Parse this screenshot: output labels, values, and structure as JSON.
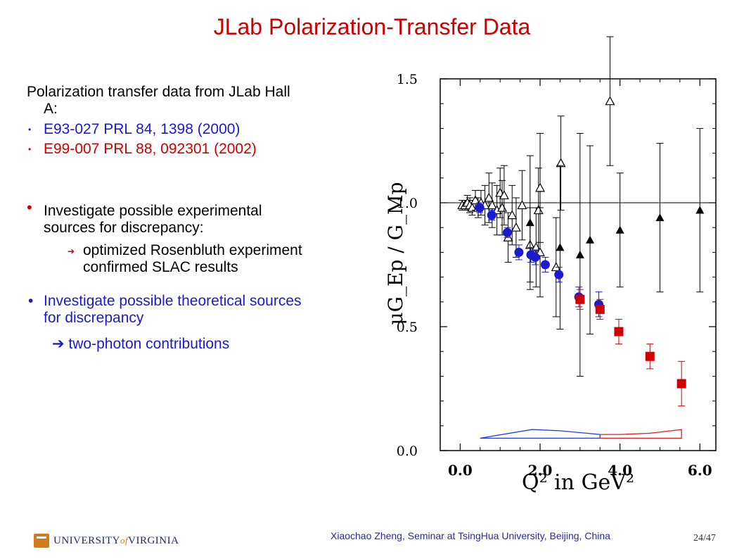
{
  "title": "JLab Polarization-Transfer Data",
  "left": {
    "intro_line1": "Polarization transfer data from JLab Hall",
    "intro_line2": "A:",
    "exp1": "E93-027   PRL 84, 1398 (2000)",
    "exp2": "E99-007   PRL 88, 092301 (2002)",
    "b1_line1": "Investigate possible experimental",
    "b1_line2": "sources for discrepancy:",
    "b1_sub1": "optimized Rosenbluth experiment",
    "b1_sub2": "confirmed SLAC results",
    "b2_line1": "Investigate possible theoretical sources",
    "b2_line2": "for discrepancy",
    "b2_sub": "➔  two-photon contributions"
  },
  "footer": {
    "credit": "Xiaochao Zheng, Seminar at TsingHua University, Beijing, China",
    "page": "24/47",
    "logo_part1": "UNIVERSITY",
    "logo_of": "of",
    "logo_part2": "VIRGINIA"
  },
  "colors": {
    "title": "#cc0000",
    "blue": "#1a1ad0",
    "red": "#d00000",
    "rosenbluth_band": "#2040e0",
    "slac_band": "#e02020"
  },
  "chart_data": {
    "type": "scatter",
    "xlabel": "Q² in GeV²",
    "ylabel": "μG_Ep / G_Mp",
    "xlim": [
      -0.5,
      6.4
    ],
    "ylim": [
      0.0,
      1.5
    ],
    "xticks": [
      "0.0",
      "2.0",
      "4.0",
      "6.0"
    ],
    "yticks": [
      "0.0",
      "0.5",
      "1.0",
      "1.5"
    ],
    "reference_line": 1.0,
    "series": [
      {
        "symbol": "open-triangle",
        "color": "#000000",
        "points": [
          {
            "x": 0.05,
            "y": 0.99,
            "err": 0.02
          },
          {
            "x": 0.12,
            "y": 0.99,
            "err": 0.02
          },
          {
            "x": 0.18,
            "y": 1.0,
            "err": 0.03
          },
          {
            "x": 0.24,
            "y": 0.99,
            "err": 0.03
          },
          {
            "x": 0.3,
            "y": 0.98,
            "err": 0.03
          },
          {
            "x": 0.38,
            "y": 1.01,
            "err": 0.04
          },
          {
            "x": 0.45,
            "y": 0.98,
            "err": 0.04
          },
          {
            "x": 0.52,
            "y": 1.0,
            "err": 0.05
          },
          {
            "x": 0.62,
            "y": 0.99,
            "err": 0.08
          },
          {
            "x": 0.72,
            "y": 1.02,
            "err": 0.1
          },
          {
            "x": 0.8,
            "y": 0.99,
            "err": 0.09
          },
          {
            "x": 0.92,
            "y": 0.97,
            "err": 0.1
          },
          {
            "x": 1.0,
            "y": 1.04,
            "err": 0.1
          },
          {
            "x": 1.05,
            "y": 0.98,
            "err": 0.11
          },
          {
            "x": 1.1,
            "y": 1.03,
            "err": 0.12
          },
          {
            "x": 1.2,
            "y": 0.86,
            "err": 0.1
          },
          {
            "x": 1.3,
            "y": 0.95,
            "err": 0.12
          },
          {
            "x": 1.4,
            "y": 0.9,
            "err": 0.12
          },
          {
            "x": 1.55,
            "y": 0.99,
            "err": 0.14
          },
          {
            "x": 1.75,
            "y": 0.83,
            "err": 0.15
          },
          {
            "x": 1.9,
            "y": 0.82,
            "err": 0.16
          },
          {
            "x": 1.96,
            "y": 0.97,
            "err": 0.17
          },
          {
            "x": 2.0,
            "y": 1.06,
            "err": 0.22
          },
          {
            "x": 2.0,
            "y": 0.8,
            "err": 0.18
          },
          {
            "x": 2.4,
            "y": 0.74,
            "err": 0.2
          },
          {
            "x": 2.52,
            "y": 1.16,
            "err": 0.19
          },
          {
            "x": 3.75,
            "y": 1.41,
            "err": 0.26
          }
        ]
      },
      {
        "symbol": "filled-triangle",
        "color": "#000000",
        "points": [
          {
            "x": 1.75,
            "y": 0.92,
            "err": 0.27
          },
          {
            "x": 2.5,
            "y": 0.82,
            "err": 0.33
          },
          {
            "x": 3.0,
            "y": 0.79,
            "err": 0.49
          },
          {
            "x": 3.25,
            "y": 0.85,
            "err": 0.38
          },
          {
            "x": 4.0,
            "y": 0.89,
            "err": 0.23
          },
          {
            "x": 5.0,
            "y": 0.94,
            "err": 0.3
          },
          {
            "x": 6.0,
            "y": 0.97,
            "err": 0.33
          }
        ]
      },
      {
        "symbol": "filled-circle",
        "color": "#1a1ad0",
        "points": [
          {
            "x": 0.49,
            "y": 0.98,
            "err": 0.02
          },
          {
            "x": 0.79,
            "y": 0.95,
            "err": 0.02
          },
          {
            "x": 1.18,
            "y": 0.88,
            "err": 0.02
          },
          {
            "x": 1.47,
            "y": 0.8,
            "err": 0.03
          },
          {
            "x": 1.77,
            "y": 0.79,
            "err": 0.03
          },
          {
            "x": 1.88,
            "y": 0.78,
            "err": 0.03
          },
          {
            "x": 2.13,
            "y": 0.75,
            "err": 0.03
          },
          {
            "x": 2.47,
            "y": 0.71,
            "err": 0.03
          },
          {
            "x": 2.97,
            "y": 0.62,
            "err": 0.04
          },
          {
            "x": 3.47,
            "y": 0.59,
            "err": 0.05
          }
        ]
      },
      {
        "symbol": "filled-square",
        "color": "#d00000",
        "points": [
          {
            "x": 3.5,
            "y": 0.57,
            "err": 0.04
          },
          {
            "x": 3.97,
            "y": 0.48,
            "err": 0.05
          },
          {
            "x": 4.75,
            "y": 0.38,
            "err": 0.05
          },
          {
            "x": 5.54,
            "y": 0.27,
            "err": 0.09
          },
          {
            "x": 3.0,
            "y": 0.61,
            "err": 0.04
          }
        ]
      }
    ],
    "systematic_bands": [
      {
        "color": "#2040e0",
        "x": [
          0.5,
          1.8,
          2.5,
          3.5
        ],
        "upper": [
          0.05,
          0.085,
          0.08,
          0.065
        ],
        "lower": [
          0.05,
          0.05,
          0.05,
          0.05
        ]
      },
      {
        "color": "#e02020",
        "x": [
          3.5,
          4.0,
          4.75,
          5.54
        ],
        "upper": [
          0.065,
          0.065,
          0.07,
          0.085
        ],
        "lower": [
          0.05,
          0.05,
          0.05,
          0.05
        ]
      }
    ]
  }
}
